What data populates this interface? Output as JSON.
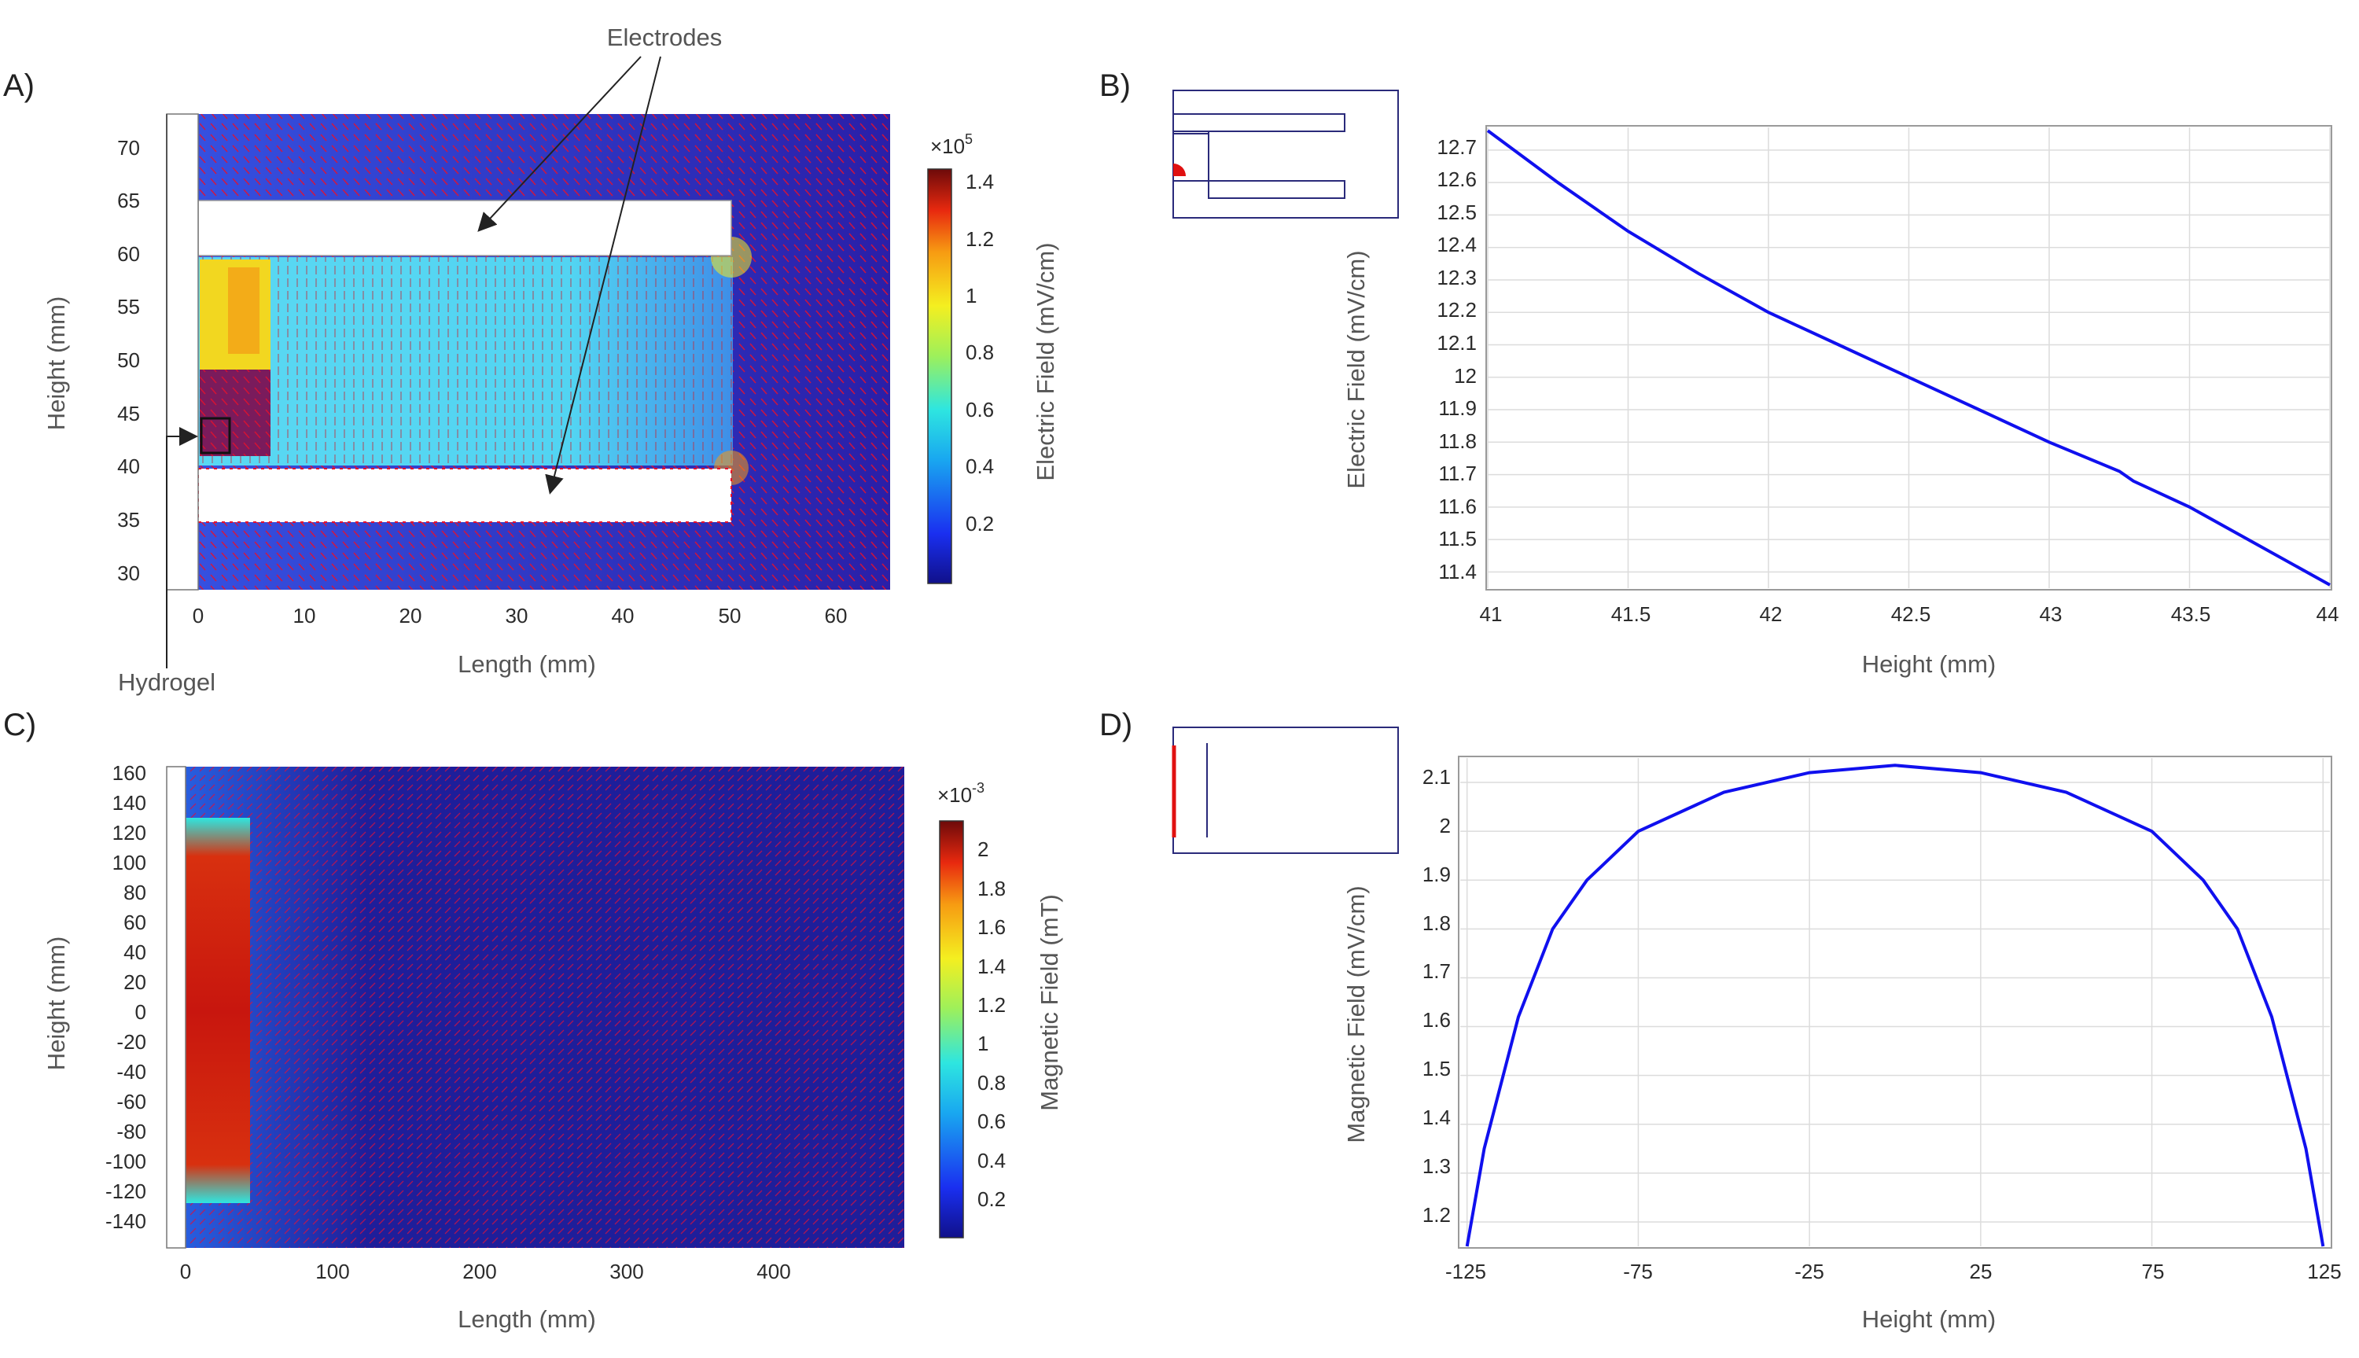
{
  "panels": {
    "a": {
      "label": "A)",
      "xlabel": "Length (mm)",
      "ylabel": "Height (mm)",
      "xticks": [
        "0",
        "10",
        "20",
        "30",
        "40",
        "50",
        "60"
      ],
      "yticks": [
        "70",
        "65",
        "60",
        "55",
        "50",
        "45",
        "40",
        "35",
        "30"
      ],
      "colorbar_label": "Electric Field (mV/cm)",
      "colorbar_multiplier": "×10",
      "colorbar_exponent": "5",
      "colorbar_ticks": [
        "1.4",
        "1.2",
        "1",
        "0.8",
        "0.6",
        "0.4",
        "0.2"
      ],
      "annotation_electrodes": "Electrodes",
      "annotation_hydrogel": "Hydrogel"
    },
    "b": {
      "label": "B)"
    },
    "c": {
      "label": "C)",
      "xlabel": "Length (mm)",
      "ylabel": "Height (mm)",
      "xticks": [
        "0",
        "100",
        "200",
        "300",
        "400"
      ],
      "yticks": [
        "160",
        "140",
        "120",
        "100",
        "80",
        "60",
        "40",
        "20",
        "0",
        "-20",
        "-40",
        "-60",
        "-80",
        "-100",
        "-120",
        "-140"
      ],
      "colorbar_label": "Magnetic Field (mT)",
      "colorbar_multiplier": "×10",
      "colorbar_exponent": "-3",
      "colorbar_ticks": [
        "2",
        "1.8",
        "1.6",
        "1.4",
        "1.2",
        "1",
        "0.8",
        "0.6",
        "0.4",
        "0.2"
      ]
    },
    "d": {
      "label": "D)"
    }
  },
  "colors": {
    "line": "#1010ee",
    "arrows": "#e8102a",
    "inset_frame": "#2a2a7a",
    "inset_marker": "#e01010"
  },
  "chart_data": [
    {
      "type": "line",
      "xlabel": "Height (mm)",
      "ylabel": "Electric Field (mV/cm)",
      "xlim": [
        41,
        44
      ],
      "ylim": [
        11.35,
        12.77
      ],
      "xticks": [
        "41",
        "41.5",
        "42",
        "42.5",
        "43",
        "43.5",
        "44"
      ],
      "yticks": [
        "12.7",
        "12.6",
        "12.5",
        "12.4",
        "12.3",
        "12.2",
        "12.1",
        "12",
        "11.9",
        "11.8",
        "11.7",
        "11.6",
        "11.5",
        "11.4"
      ],
      "grid": true,
      "x": [
        41.0,
        41.25,
        41.5,
        41.75,
        42.0,
        42.25,
        42.5,
        42.75,
        43.0,
        43.25,
        43.3,
        43.5,
        43.75,
        44.0
      ],
      "y": [
        12.76,
        12.6,
        12.45,
        12.32,
        12.2,
        12.1,
        12.0,
        11.9,
        11.8,
        11.71,
        11.68,
        11.6,
        11.48,
        11.36
      ]
    },
    {
      "type": "line",
      "xlabel": "Height (mm)",
      "ylabel": "Magnetic Field (mV/cm)",
      "xlim": [
        -127,
        127
      ],
      "ylim": [
        1.15,
        2.15
      ],
      "xticks": [
        "-125",
        "-75",
        "-25",
        "25",
        "75",
        "125"
      ],
      "yticks": [
        "2.1",
        "2",
        "1.9",
        "1.8",
        "1.7",
        "1.6",
        "1.5",
        "1.4",
        "1.3",
        "1.2"
      ],
      "grid": true,
      "x": [
        -125,
        -120,
        -110,
        -100,
        -90,
        -75,
        -50,
        -25,
        0,
        25,
        50,
        75,
        90,
        100,
        110,
        120,
        125
      ],
      "y": [
        1.15,
        1.35,
        1.62,
        1.8,
        1.9,
        2.0,
        2.08,
        2.12,
        2.135,
        2.12,
        2.08,
        2.0,
        1.9,
        1.8,
        1.62,
        1.35,
        1.15
      ]
    }
  ]
}
